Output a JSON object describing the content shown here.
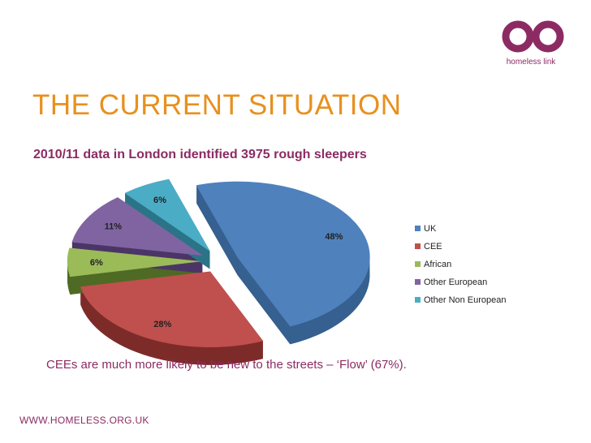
{
  "brand": {
    "logo_text": "homeless link",
    "color": "#8c2b63"
  },
  "slide": {
    "title": "THE CURRENT SITUATION",
    "subtitle": "2010/11 data in London identified 3975 rough sleepers",
    "note": "CEEs are much more likely to be new to the streets – ‘Flow’ (67%).",
    "footer": "WWW.HOMELESS.ORG.UK"
  },
  "chart_data": {
    "type": "pie",
    "style": "3d-exploded",
    "slices": [
      {
        "label": "UK",
        "value": 48,
        "display": "48%",
        "color": "#4f81bd",
        "side": "#35608f"
      },
      {
        "label": "CEE",
        "value": 28,
        "display": "28%",
        "color": "#c0504d",
        "side": "#7d2b29"
      },
      {
        "label": "African",
        "value": 6,
        "display": "6%",
        "color": "#9bbb59",
        "side": "#4f6a24"
      },
      {
        "label": "Other European",
        "value": 11,
        "display": "11%",
        "color": "#8064a2",
        "side": "#4b3566"
      },
      {
        "label": "Other Non European",
        "value": 6,
        "display": "6%",
        "color": "#4bacc6",
        "side": "#2b7487"
      }
    ],
    "legend_position": "right"
  }
}
